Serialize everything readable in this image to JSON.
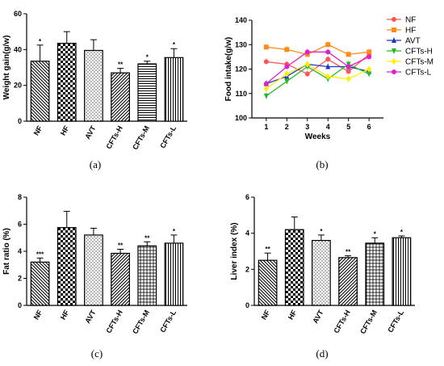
{
  "chart_data": [
    {
      "id": "a",
      "panel_label": "(a)",
      "type": "bar",
      "ylabel": "Weight gain(g/w)",
      "ylim": [
        0,
        60
      ],
      "yticks": [
        0,
        20,
        40,
        60
      ],
      "categories": [
        "NF",
        "HF",
        "AVT",
        "CFTs-H",
        "CFTs-M",
        "CFTs-L"
      ],
      "values": [
        33.5,
        43.5,
        39.5,
        27,
        32,
        35.5
      ],
      "errors": [
        9,
        6.5,
        6,
        2.5,
        1.5,
        5
      ],
      "significance": [
        "*",
        "",
        "",
        "**",
        "*",
        "*"
      ],
      "patterns": [
        "diag-back",
        "check",
        "dots",
        "diag-fwd",
        "hlines",
        "vlines"
      ]
    },
    {
      "id": "b",
      "panel_label": "(b)",
      "type": "line",
      "ylabel": "Food intake(g/w)",
      "xlabel": "Weeks",
      "x": [
        1,
        2,
        3,
        4,
        5,
        6
      ],
      "xlim": [
        0.3,
        6.7
      ],
      "ylim": [
        100,
        140
      ],
      "yticks": [
        100,
        110,
        120,
        130,
        140
      ],
      "series": [
        {
          "name": "NF",
          "color": "#ff5555",
          "marker": "circle",
          "values": [
            123,
            122,
            118,
            124,
            119,
            126
          ]
        },
        {
          "name": "HF",
          "color": "#ff8c1a",
          "marker": "square",
          "values": [
            129,
            128,
            126,
            130,
            126,
            127
          ]
        },
        {
          "name": "AVT",
          "color": "#2233cc",
          "marker": "triangle-up",
          "values": [
            114,
            117,
            122,
            121,
            121,
            119
          ]
        },
        {
          "name": "CFTs-H",
          "color": "#22bb22",
          "marker": "triangle-down",
          "values": [
            109,
            115,
            121,
            116,
            122,
            118
          ]
        },
        {
          "name": "CFTs-M",
          "color": "#ffee00",
          "marker": "diamond",
          "values": [
            112,
            118,
            122,
            117,
            116,
            120
          ]
        },
        {
          "name": "CFTs-L",
          "color": "#dd22cc",
          "marker": "circle",
          "values": [
            114,
            121,
            127,
            127,
            121,
            125
          ]
        }
      ]
    },
    {
      "id": "c",
      "panel_label": "(c)",
      "type": "bar",
      "ylabel": "Fat ratio (%)",
      "ylim": [
        0,
        8
      ],
      "yticks": [
        0,
        2,
        4,
        6,
        8
      ],
      "categories": [
        "NF",
        "HF",
        "AVT",
        "CFTs-H",
        "CFTs-M",
        "CFTs-L"
      ],
      "values": [
        3.2,
        5.75,
        5.2,
        3.85,
        4.4,
        4.6
      ],
      "errors": [
        0.3,
        1.2,
        0.5,
        0.3,
        0.3,
        0.6
      ],
      "significance": [
        "***",
        "",
        "",
        "**",
        "**",
        "*"
      ],
      "patterns": [
        "diag-back",
        "check",
        "dots",
        "diag-fwd",
        "grid",
        "vlines"
      ]
    },
    {
      "id": "d",
      "panel_label": "(d)",
      "type": "bar",
      "ylabel": "Liver index (%)",
      "ylim": [
        0,
        6
      ],
      "yticks": [
        0,
        2,
        4,
        6
      ],
      "categories": [
        "NF",
        "HF",
        "AVT",
        "CFTs-H",
        "CFTs-M",
        "CFTs-L"
      ],
      "values": [
        2.5,
        4.2,
        3.6,
        2.65,
        3.45,
        3.75
      ],
      "errors": [
        0.4,
        0.7,
        0.3,
        0.1,
        0.3,
        0.1
      ],
      "significance": [
        "**",
        "",
        "*",
        "**",
        "*",
        "*"
      ],
      "patterns": [
        "diag-back",
        "check",
        "dots",
        "diag-fwd",
        "grid",
        "vlines"
      ]
    }
  ]
}
